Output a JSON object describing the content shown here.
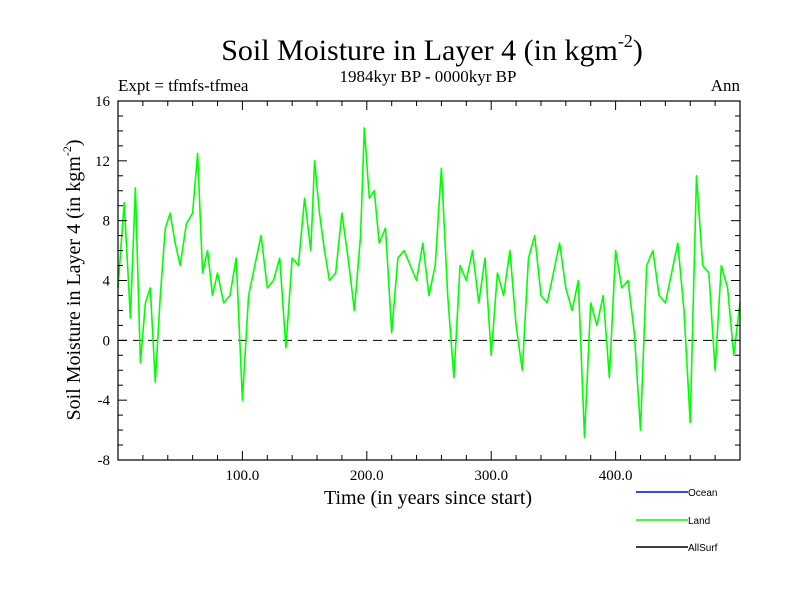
{
  "chart_data": {
    "type": "line",
    "title_main": "Soil Moisture in Layer 4 (in kgm",
    "title_sup": "-2",
    "title_close": ")",
    "subtitle": "1984kyr BP - 0000kyr BP",
    "left_label": "Expt = tfmfs-tfmea",
    "right_label": "Ann",
    "xlabel": "Time (in years since start)",
    "ylabel_main": "Soil Moisture in Layer 4 (in kgm",
    "ylabel_sup": "-2",
    "ylabel_close": ")",
    "xlim": [
      0,
      500
    ],
    "ylim": [
      -8,
      16
    ],
    "x_ticks": [
      100,
      200,
      300,
      400
    ],
    "x_tick_labels": [
      "100.0",
      "200.0",
      "300.0",
      "400.0"
    ],
    "y_ticks": [
      -8,
      -4,
      0,
      4,
      8,
      12,
      16
    ],
    "y_tick_labels": [
      "-8",
      "-4",
      "0",
      "4",
      "8",
      "12",
      "16"
    ],
    "reference_line": 0,
    "legend": [
      {
        "name": "Ocean",
        "color": "#0000ff"
      },
      {
        "name": "Land",
        "color": "#00ff00"
      },
      {
        "name": "AllSurf",
        "color": "#000000"
      }
    ],
    "series": [
      {
        "name": "Land",
        "color": "#00ff00",
        "x": [
          0,
          5,
          10,
          14,
          18,
          22,
          26,
          30,
          34,
          38,
          42,
          46,
          50,
          55,
          60,
          64,
          68,
          72,
          76,
          80,
          85,
          90,
          95,
          100,
          105,
          110,
          115,
          120,
          125,
          130,
          135,
          140,
          145,
          150,
          155,
          158,
          162,
          166,
          170,
          175,
          180,
          185,
          190,
          195,
          198,
          202,
          206,
          210,
          215,
          220,
          225,
          230,
          235,
          240,
          245,
          250,
          255,
          260,
          265,
          270,
          275,
          280,
          285,
          290,
          295,
          300,
          305,
          310,
          315,
          320,
          325,
          330,
          335,
          340,
          345,
          350,
          355,
          360,
          365,
          370,
          375,
          380,
          385,
          390,
          395,
          400,
          405,
          410,
          415,
          420,
          425,
          430,
          435,
          440,
          445,
          450,
          455,
          460,
          465,
          470,
          475,
          480,
          485,
          490,
          495,
          500
        ],
        "values": [
          3.5,
          9.2,
          1.5,
          10.2,
          -1.5,
          2.5,
          3.5,
          -2.8,
          3.0,
          7.5,
          8.5,
          6.5,
          5.0,
          7.8,
          8.5,
          12.5,
          4.5,
          6.0,
          3.0,
          4.5,
          2.5,
          3.0,
          5.5,
          -4.0,
          3.0,
          5.0,
          7.0,
          3.5,
          4.0,
          5.5,
          -0.5,
          5.5,
          5.0,
          9.5,
          6.0,
          12.0,
          8.5,
          6.0,
          4.0,
          4.5,
          8.5,
          5.5,
          2.0,
          7.0,
          14.2,
          9.5,
          10.0,
          6.5,
          7.5,
          0.5,
          5.5,
          6.0,
          5.0,
          4.0,
          6.5,
          3.0,
          5.0,
          11.5,
          3.0,
          -2.5,
          5.0,
          4.0,
          6.0,
          2.5,
          5.5,
          -1.0,
          4.5,
          3.0,
          6.0,
          1.0,
          -2.0,
          5.5,
          7.0,
          3.0,
          2.5,
          4.5,
          6.5,
          3.5,
          2.0,
          4.0,
          -6.5,
          2.5,
          1.0,
          3.0,
          -2.5,
          6.0,
          3.5,
          4.0,
          0.5,
          -6.0,
          5.0,
          6.0,
          3.0,
          2.5,
          4.5,
          6.5,
          2.0,
          -5.5,
          11.0,
          5.0,
          4.5,
          -2.0,
          5.0,
          3.5,
          -1.0,
          2.5
        ]
      }
    ]
  }
}
